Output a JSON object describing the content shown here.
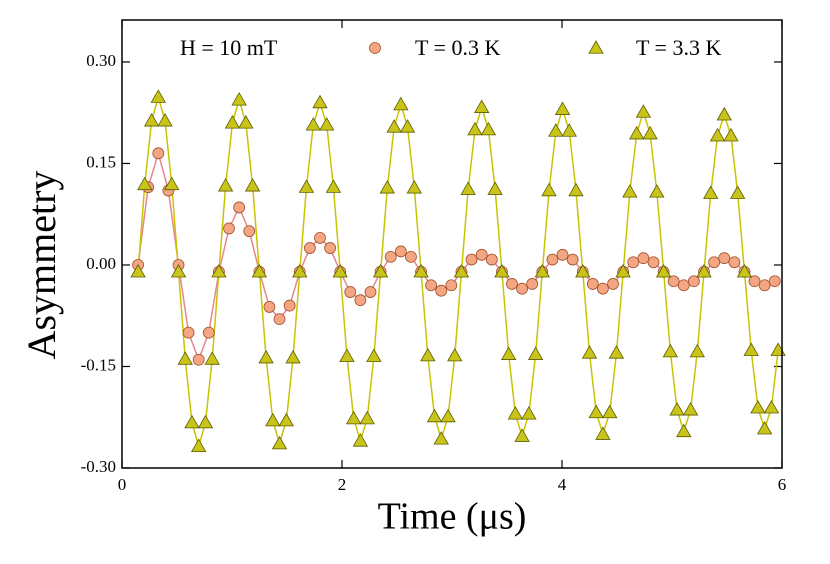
{
  "chart_data": {
    "type": "scatter",
    "annotation": "H = 10 mT",
    "xlabel": "Time (μs)",
    "ylabel": "Asymmetry",
    "xlim": [
      0,
      6
    ],
    "ylim": [
      -0.3,
      0.362
    ],
    "xticks": [
      0,
      2,
      4,
      6
    ],
    "yticks": [
      {
        "value": -0.3,
        "label": "-0.30"
      },
      {
        "value": -0.15,
        "label": "-0.15"
      },
      {
        "value": 0,
        "label": "0.00"
      },
      {
        "value": 0.15,
        "label": "0.15"
      },
      {
        "value": 0.3,
        "label": "0.30"
      }
    ],
    "series": [
      {
        "name": "T = 0.3 K",
        "marker": "circle",
        "color": "#f4a582",
        "edge_color": "#a0522d",
        "line_color": "#e8858e",
        "x": [
          0.146,
          0.238,
          0.33,
          0.422,
          0.514,
          0.605,
          0.697,
          0.789,
          0.881,
          0.973,
          1.065,
          1.157,
          1.249,
          1.34,
          1.432,
          1.524,
          1.616,
          1.708,
          1.8,
          1.892,
          1.984,
          2.075,
          2.167,
          2.259,
          2.351,
          2.443,
          2.535,
          2.627,
          2.719,
          2.81,
          2.902,
          2.994,
          3.086,
          3.178,
          3.27,
          3.362,
          3.454,
          3.545,
          3.637,
          3.729,
          3.821,
          3.913,
          4.005,
          4.097,
          4.189,
          4.28,
          4.372,
          4.464,
          4.556,
          4.648,
          4.74,
          4.832,
          4.924,
          5.015,
          5.107,
          5.199,
          5.291,
          5.383,
          5.475,
          5.567,
          5.659,
          5.75,
          5.842,
          5.934
        ],
        "values": [
          0,
          0.115,
          0.165,
          0.11,
          0,
          -0.1,
          -0.14,
          -0.1,
          -0.01,
          0.054,
          0.085,
          0.05,
          -0.01,
          -0.062,
          -0.08,
          -0.06,
          -0.01,
          0.025,
          0.04,
          0.025,
          -0.01,
          -0.04,
          -0.052,
          -0.04,
          -0.01,
          0.012,
          0.02,
          0.012,
          -0.01,
          -0.03,
          -0.038,
          -0.03,
          -0.01,
          0.008,
          0.015,
          0.008,
          -0.01,
          -0.028,
          -0.035,
          -0.028,
          -0.01,
          0.008,
          0.015,
          0.008,
          -0.01,
          -0.028,
          -0.035,
          -0.028,
          -0.01,
          0.004,
          0.01,
          0.004,
          -0.01,
          -0.024,
          -0.03,
          -0.024,
          -0.01,
          0.004,
          0.01,
          0.004,
          -0.01,
          -0.024,
          -0.03,
          -0.024
        ]
      },
      {
        "name": "T = 3.3 K",
        "marker": "triangle",
        "color": "#c8c41a",
        "edge_color": "#5e5c00",
        "line_color": "#c9c400",
        "x": [
          0.146,
          0.207,
          0.269,
          0.33,
          0.391,
          0.452,
          0.514,
          0.575,
          0.636,
          0.697,
          0.759,
          0.82,
          0.881,
          0.942,
          1.004,
          1.065,
          1.126,
          1.187,
          1.249,
          1.31,
          1.371,
          1.432,
          1.494,
          1.555,
          1.616,
          1.677,
          1.739,
          1.8,
          1.861,
          1.922,
          1.984,
          2.045,
          2.106,
          2.167,
          2.229,
          2.29,
          2.351,
          2.412,
          2.474,
          2.535,
          2.596,
          2.657,
          2.719,
          2.78,
          2.841,
          2.902,
          2.964,
          3.025,
          3.086,
          3.147,
          3.209,
          3.27,
          3.331,
          3.392,
          3.454,
          3.515,
          3.576,
          3.637,
          3.699,
          3.76,
          3.821,
          3.882,
          3.944,
          4.005,
          4.066,
          4.127,
          4.189,
          4.25,
          4.311,
          4.372,
          4.434,
          4.495,
          4.556,
          4.617,
          4.679,
          4.74,
          4.801,
          4.862,
          4.924,
          4.985,
          5.046,
          5.107,
          5.169,
          5.23,
          5.291,
          5.352,
          5.414,
          5.475,
          5.536,
          5.597,
          5.659,
          5.72,
          5.781,
          5.842,
          5.904,
          5.965
        ],
        "values": [
          -0.01,
          0.119,
          0.213,
          0.248,
          0.213,
          0.119,
          -0.01,
          -0.139,
          -0.233,
          -0.268,
          -0.233,
          -0.139,
          -0.01,
          0.117,
          0.21,
          0.244,
          0.21,
          0.117,
          -0.01,
          -0.137,
          -0.23,
          -0.264,
          -0.23,
          -0.137,
          -0.01,
          0.115,
          0.207,
          0.24,
          0.207,
          0.115,
          -0.01,
          -0.135,
          -0.227,
          -0.26,
          -0.227,
          -0.135,
          -0.01,
          0.114,
          0.204,
          0.237,
          0.204,
          0.114,
          -0.01,
          -0.134,
          -0.224,
          -0.257,
          -0.224,
          -0.134,
          -0.01,
          0.112,
          0.2,
          0.233,
          0.2,
          0.112,
          -0.01,
          -0.132,
          -0.22,
          -0.253,
          -0.22,
          -0.132,
          -0.01,
          0.11,
          0.198,
          0.23,
          0.198,
          0.11,
          -0.01,
          -0.13,
          -0.218,
          -0.25,
          -0.218,
          -0.13,
          -0.01,
          0.108,
          0.194,
          0.226,
          0.194,
          0.108,
          -0.01,
          -0.128,
          -0.214,
          -0.246,
          -0.214,
          -0.128,
          -0.01,
          0.106,
          0.191,
          0.222,
          0.191,
          0.106,
          -0.01,
          -0.126,
          -0.211,
          -0.242,
          -0.211,
          -0.126
        ]
      }
    ]
  }
}
